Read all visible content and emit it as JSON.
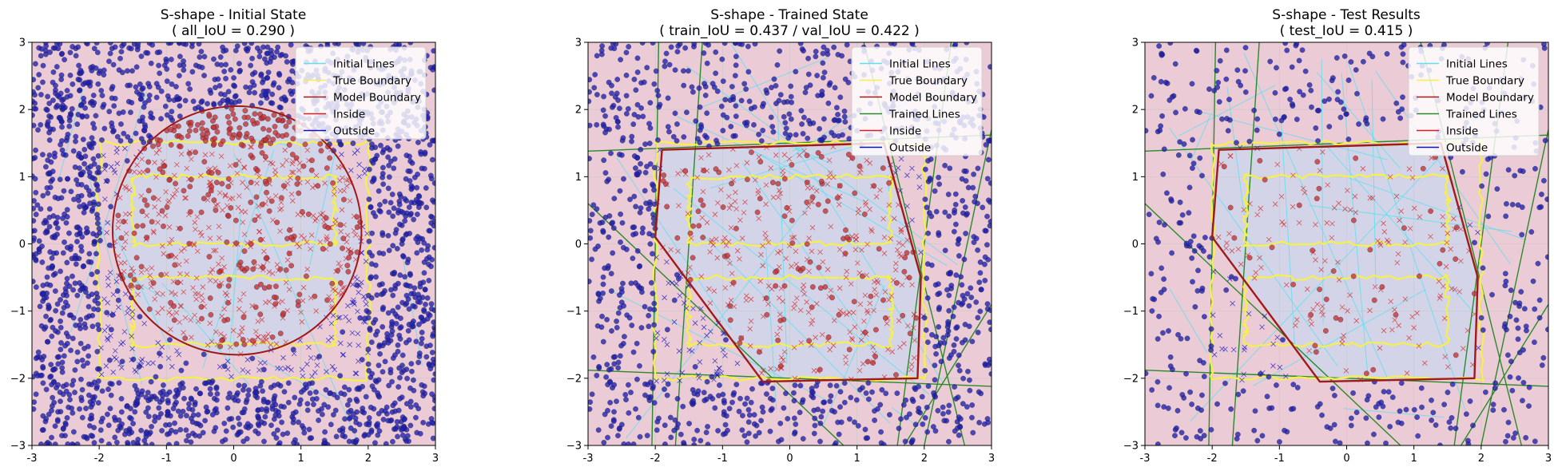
{
  "chart_data": [
    {
      "type": "scatter",
      "title": "S-shape - Initial State",
      "subtitle": "( all_IoU = 0.290 )",
      "xlim": [
        -3,
        3
      ],
      "ylim": [
        -3,
        3
      ],
      "xticks": [
        "-3",
        "-2",
        "-1",
        "0",
        "1",
        "2",
        "3"
      ],
      "yticks": [
        "3",
        "2",
        "1",
        "0",
        "−1",
        "−2",
        "−3"
      ],
      "legend": [
        "Initial Lines",
        "True Boundary",
        "Model Boundary",
        "Inside",
        "Outside"
      ],
      "legend_position": "top-right",
      "model_boundary": {
        "shape": "circle",
        "center": [
          0.05,
          0.2
        ],
        "radius": 1.85
      },
      "point_density": "dense"
    },
    {
      "type": "scatter",
      "title": "S-shape - Trained State",
      "subtitle": "( train_IoU = 0.437 / val_IoU = 0.422 )",
      "xlim": [
        -3,
        3
      ],
      "ylim": [
        -3,
        3
      ],
      "xticks": [
        "-3",
        "-2",
        "-1",
        "0",
        "1",
        "2",
        "3"
      ],
      "yticks": [
        "3",
        "2",
        "1",
        "0",
        "−1",
        "−2",
        "−3"
      ],
      "legend": [
        "Initial Lines",
        "True Boundary",
        "Model Boundary",
        "Trained Lines",
        "Inside",
        "Outside"
      ],
      "legend_position": "top-right",
      "model_boundary": {
        "shape": "polygon",
        "points": [
          [
            -1.9,
            1.4
          ],
          [
            1.4,
            1.5
          ],
          [
            1.95,
            -0.5
          ],
          [
            1.9,
            -2.0
          ],
          [
            -0.4,
            -2.05
          ],
          [
            -2.0,
            0.1
          ]
        ]
      },
      "point_density": "medium"
    },
    {
      "type": "scatter",
      "title": "S-shape - Test Results",
      "subtitle": "( test_IoU = 0.415 )",
      "xlim": [
        -3,
        3
      ],
      "ylim": [
        -3,
        3
      ],
      "xticks": [
        "-3",
        "-2",
        "-1",
        "0",
        "1",
        "2",
        "3"
      ],
      "yticks": [
        "3",
        "2",
        "1",
        "0",
        "−1",
        "−2",
        "−3"
      ],
      "legend": [
        "Initial Lines",
        "True Boundary",
        "Model Boundary",
        "Trained Lines",
        "Inside",
        "Outside"
      ],
      "legend_position": "top-right",
      "model_boundary": {
        "shape": "polygon",
        "points": [
          [
            -1.9,
            1.4
          ],
          [
            1.4,
            1.5
          ],
          [
            1.95,
            -0.5
          ],
          [
            1.9,
            -2.0
          ],
          [
            -0.4,
            -2.05
          ],
          [
            -2.0,
            0.1
          ]
        ]
      },
      "point_density": "sparse"
    }
  ],
  "colors": {
    "background_outside": "#ebcbd5",
    "background_inside": "#d3d4e8",
    "initial_lines": "#5ee0ee",
    "true_boundary": "#f5f04a",
    "model_boundary": "#a01a1a",
    "trained_lines": "#2a8a2a",
    "inside": "#d62020",
    "outside": "#1010c0",
    "point_inside": "#c83232",
    "point_outside": "#2020b0"
  }
}
